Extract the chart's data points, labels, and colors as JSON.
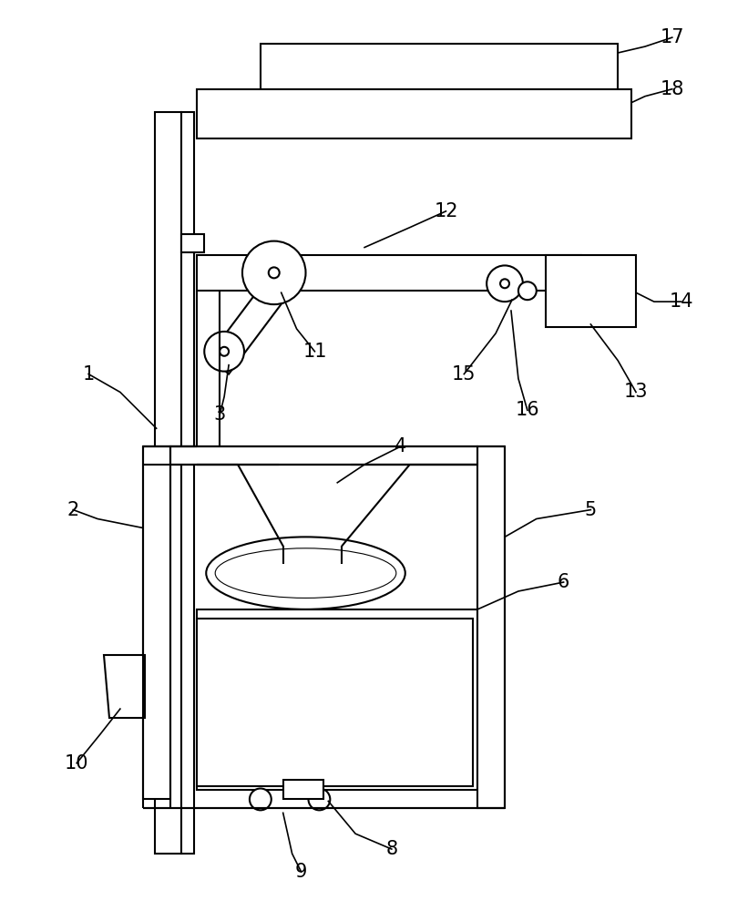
{
  "fig_width": 8.21,
  "fig_height": 10.0,
  "dpi": 100,
  "bg_color": "#ffffff",
  "lc": "#000000",
  "lw": 1.5
}
